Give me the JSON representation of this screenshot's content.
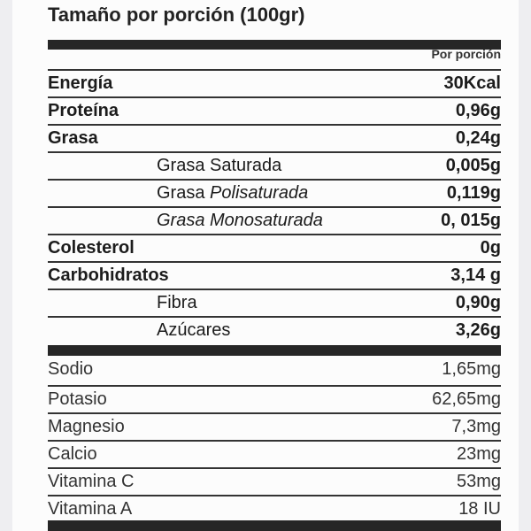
{
  "title": "Tamaño por porción (100gr)",
  "column_header": "Por porción",
  "nutrients": [
    {
      "name": "Energía",
      "value": "30Kcal"
    },
    {
      "name": "Proteína",
      "value": "0,96g"
    },
    {
      "name": "Grasa",
      "value": "0,24g"
    },
    {
      "name": "Grasa Saturada",
      "value": "0,005g"
    },
    {
      "name_plain": "Grasa ",
      "name_italic": "Polisaturada",
      "value": "0,119g"
    },
    {
      "name_italic": "Grasa Monosaturada",
      "value": "0, 015g"
    },
    {
      "name": "Colesterol",
      "value": "0g"
    },
    {
      "name": "Carbohidratos",
      "value": "3,14 g"
    },
    {
      "name": "Fibra",
      "value": "0,90g"
    },
    {
      "name": "Azúcares",
      "value": "3,26g"
    }
  ],
  "minerals": [
    {
      "name": "Sodio",
      "value": "1,65mg"
    },
    {
      "name": "Potasio",
      "value": "62,65mg"
    },
    {
      "name": "Magnesio",
      "value": "7,3mg"
    },
    {
      "name": "Calcio",
      "value": "23mg"
    },
    {
      "name": "Vitamina C",
      "value": "53mg"
    },
    {
      "name": "Vitamina A",
      "value": "18 IU"
    }
  ]
}
